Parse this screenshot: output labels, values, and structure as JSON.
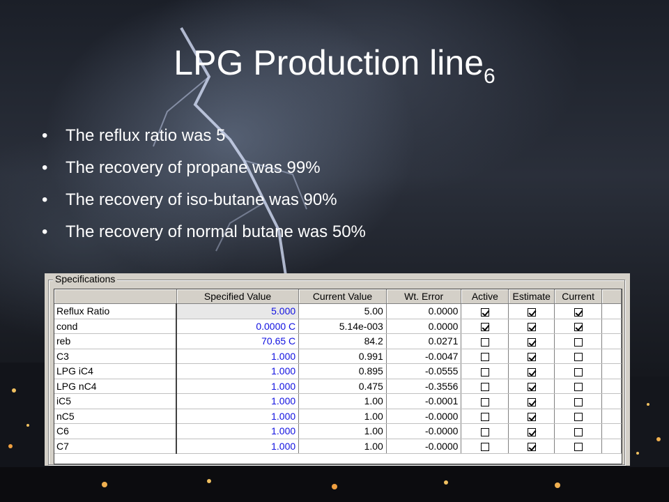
{
  "title": {
    "main": "LPG Production line",
    "subscript": "6"
  },
  "bullets": [
    "The reflux ratio was 5",
    "The recovery of propane was 99%",
    "The recovery of iso-butane was 90%",
    "The recovery of normal butane was 50%"
  ],
  "bullet_glyph": "•",
  "specifications": {
    "group_label": "Specifications",
    "columns": [
      "Specified Value",
      "Current Value",
      "Wt. Error",
      "Active",
      "Estimate",
      "Current"
    ],
    "rows": [
      {
        "name": "Reflux Ratio",
        "specified": "5.000",
        "current_value": "5.00",
        "wt_error": "0.0000",
        "active": true,
        "estimate": true,
        "current": true
      },
      {
        "name": "cond",
        "specified": "0.0000 C",
        "current_value": "5.14e-003",
        "wt_error": "0.0000",
        "active": true,
        "estimate": true,
        "current": true
      },
      {
        "name": "reb",
        "specified": "70.65 C",
        "current_value": "84.2",
        "wt_error": "0.0271",
        "active": false,
        "estimate": true,
        "current": false
      },
      {
        "name": "C3",
        "specified": "1.000",
        "current_value": "0.991",
        "wt_error": "-0.0047",
        "active": false,
        "estimate": true,
        "current": false
      },
      {
        "name": "LPG iC4",
        "specified": "1.000",
        "current_value": "0.895",
        "wt_error": "-0.0555",
        "active": false,
        "estimate": true,
        "current": false
      },
      {
        "name": "LPG nC4",
        "specified": "1.000",
        "current_value": "0.475",
        "wt_error": "-0.3556",
        "active": false,
        "estimate": true,
        "current": false
      },
      {
        "name": "iC5",
        "specified": "1.000",
        "current_value": "1.00",
        "wt_error": "-0.0001",
        "active": false,
        "estimate": true,
        "current": false
      },
      {
        "name": "nC5",
        "specified": "1.000",
        "current_value": "1.00",
        "wt_error": "-0.0000",
        "active": false,
        "estimate": true,
        "current": false
      },
      {
        "name": "C6",
        "specified": "1.000",
        "current_value": "1.00",
        "wt_error": "-0.0000",
        "active": false,
        "estimate": true,
        "current": false
      },
      {
        "name": "C7",
        "specified": "1.000",
        "current_value": "1.00",
        "wt_error": "-0.0000",
        "active": false,
        "estimate": true,
        "current": false
      }
    ]
  },
  "colors": {
    "spec_value": "#1010e0",
    "panel": "#d4d0c8",
    "title_text": "#ffffff"
  }
}
